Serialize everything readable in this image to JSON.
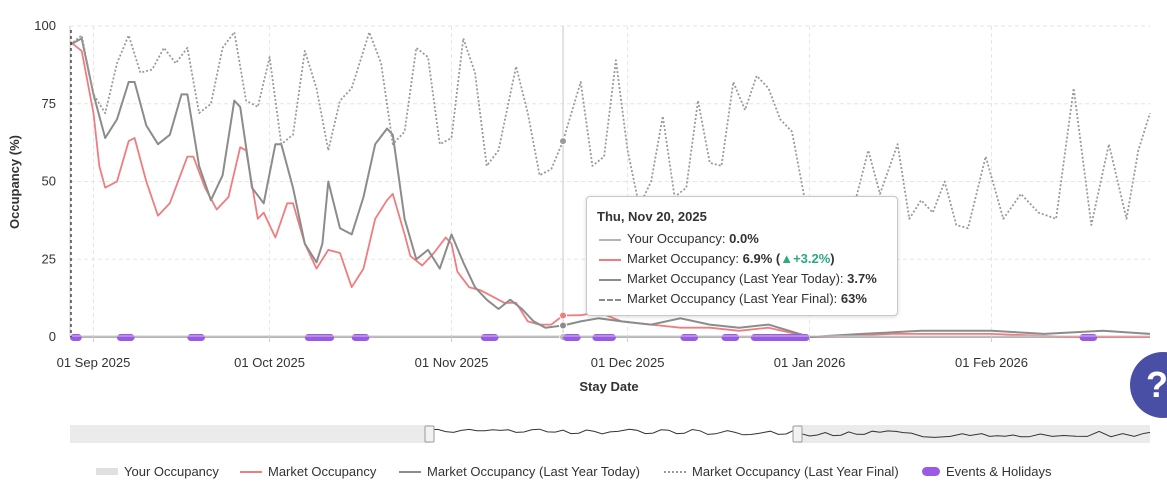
{
  "chart_data": {
    "type": "line",
    "xlabel": "Stay Date",
    "ylabel": "Occupancy (%)",
    "ylim": [
      0,
      100
    ],
    "y_ticks": [
      "0",
      "25",
      "50",
      "75",
      "100"
    ],
    "x_ticks": [
      "01 Sep 2025",
      "01 Oct 2025",
      "01 Nov 2025",
      "01 Dec 2025",
      "01 Jan 2026",
      "01 Feb 2026"
    ],
    "x_range": [
      "2025-08-28",
      "2026-02-28"
    ],
    "grid": true,
    "today_marker": "2025-08-28",
    "hover_date": "2025-11-20",
    "series": [
      {
        "name": "Your Occupancy",
        "color": "#b4b4b4",
        "points": [
          [
            "2025-08-28",
            0
          ],
          [
            "2026-02-28",
            0
          ]
        ]
      },
      {
        "name": "Market Occupancy",
        "color": "#ef7d80",
        "points": [
          [
            "2025-08-28",
            95
          ],
          [
            "2025-08-30",
            92
          ],
          [
            "2025-09-01",
            72
          ],
          [
            "2025-09-02",
            55
          ],
          [
            "2025-09-03",
            48
          ],
          [
            "2025-09-05",
            50
          ],
          [
            "2025-09-07",
            63
          ],
          [
            "2025-09-08",
            64
          ],
          [
            "2025-09-10",
            50
          ],
          [
            "2025-09-12",
            39
          ],
          [
            "2025-09-14",
            43
          ],
          [
            "2025-09-17",
            58
          ],
          [
            "2025-09-18",
            58
          ],
          [
            "2025-09-20",
            48
          ],
          [
            "2025-09-22",
            41
          ],
          [
            "2025-09-24",
            45
          ],
          [
            "2025-09-26",
            61
          ],
          [
            "2025-09-27",
            60
          ],
          [
            "2025-09-29",
            38
          ],
          [
            "2025-09-30",
            40
          ],
          [
            "2025-10-02",
            32
          ],
          [
            "2025-10-04",
            43
          ],
          [
            "2025-10-05",
            43
          ],
          [
            "2025-10-07",
            30
          ],
          [
            "2025-10-09",
            22
          ],
          [
            "2025-10-11",
            28
          ],
          [
            "2025-10-13",
            27
          ],
          [
            "2025-10-15",
            16
          ],
          [
            "2025-10-17",
            22
          ],
          [
            "2025-10-19",
            38
          ],
          [
            "2025-10-21",
            44
          ],
          [
            "2025-10-22",
            46
          ],
          [
            "2025-10-24",
            33
          ],
          [
            "2025-10-25",
            26
          ],
          [
            "2025-10-27",
            23
          ],
          [
            "2025-10-29",
            27
          ],
          [
            "2025-10-31",
            32
          ],
          [
            "2025-11-01",
            30
          ],
          [
            "2025-11-02",
            21
          ],
          [
            "2025-11-04",
            16
          ],
          [
            "2025-11-06",
            15
          ],
          [
            "2025-11-08",
            13
          ],
          [
            "2025-11-10",
            11
          ],
          [
            "2025-11-12",
            11
          ],
          [
            "2025-11-14",
            5
          ],
          [
            "2025-11-16",
            4
          ],
          [
            "2025-11-18",
            4
          ],
          [
            "2025-11-20",
            6.9
          ],
          [
            "2025-11-23",
            7
          ],
          [
            "2025-11-26",
            8
          ],
          [
            "2025-11-30",
            5
          ],
          [
            "2025-12-05",
            4
          ],
          [
            "2025-12-10",
            3
          ],
          [
            "2025-12-15",
            3
          ],
          [
            "2025-12-20",
            2
          ],
          [
            "2025-12-25",
            3
          ],
          [
            "2026-01-01",
            0
          ],
          [
            "2026-01-15",
            1
          ],
          [
            "2026-02-01",
            1
          ],
          [
            "2026-02-15",
            0
          ],
          [
            "2026-02-28",
            0
          ]
        ]
      },
      {
        "name": "Market Occupancy (Last Year Today)",
        "color": "#8c8c8c",
        "points": [
          [
            "2025-08-28",
            94
          ],
          [
            "2025-08-30",
            96
          ],
          [
            "2025-09-01",
            78
          ],
          [
            "2025-09-03",
            64
          ],
          [
            "2025-09-05",
            70
          ],
          [
            "2025-09-07",
            82
          ],
          [
            "2025-09-08",
            82
          ],
          [
            "2025-09-10",
            68
          ],
          [
            "2025-09-12",
            62
          ],
          [
            "2025-09-14",
            65
          ],
          [
            "2025-09-16",
            78
          ],
          [
            "2025-09-17",
            78
          ],
          [
            "2025-09-19",
            55
          ],
          [
            "2025-09-21",
            44
          ],
          [
            "2025-09-23",
            52
          ],
          [
            "2025-09-25",
            76
          ],
          [
            "2025-09-26",
            74
          ],
          [
            "2025-09-28",
            48
          ],
          [
            "2025-09-30",
            43
          ],
          [
            "2025-10-02",
            62
          ],
          [
            "2025-10-03",
            62
          ],
          [
            "2025-10-05",
            48
          ],
          [
            "2025-10-07",
            30
          ],
          [
            "2025-10-09",
            24
          ],
          [
            "2025-10-10",
            30
          ],
          [
            "2025-10-11",
            50
          ],
          [
            "2025-10-13",
            35
          ],
          [
            "2025-10-15",
            33
          ],
          [
            "2025-10-17",
            45
          ],
          [
            "2025-10-19",
            62
          ],
          [
            "2025-10-21",
            67
          ],
          [
            "2025-10-22",
            65
          ],
          [
            "2025-10-24",
            38
          ],
          [
            "2025-10-26",
            25
          ],
          [
            "2025-10-28",
            28
          ],
          [
            "2025-10-30",
            22
          ],
          [
            "2025-11-01",
            33
          ],
          [
            "2025-11-03",
            24
          ],
          [
            "2025-11-05",
            16
          ],
          [
            "2025-11-07",
            12
          ],
          [
            "2025-11-09",
            9
          ],
          [
            "2025-11-11",
            12
          ],
          [
            "2025-11-13",
            9
          ],
          [
            "2025-11-15",
            5
          ],
          [
            "2025-11-17",
            3
          ],
          [
            "2025-11-20",
            3.7
          ],
          [
            "2025-11-23",
            5
          ],
          [
            "2025-11-26",
            6
          ],
          [
            "2025-11-30",
            5
          ],
          [
            "2025-12-05",
            4
          ],
          [
            "2025-12-10",
            6
          ],
          [
            "2025-12-15",
            4
          ],
          [
            "2025-12-20",
            3
          ],
          [
            "2025-12-25",
            4
          ],
          [
            "2026-01-01",
            0
          ],
          [
            "2026-01-10",
            1
          ],
          [
            "2026-01-20",
            2
          ],
          [
            "2026-02-01",
            2
          ],
          [
            "2026-02-10",
            1
          ],
          [
            "2026-02-20",
            2
          ],
          [
            "2026-02-28",
            1
          ]
        ]
      },
      {
        "name": "Market Occupancy (Last Year Final)",
        "color": "#9a9a9a",
        "points": [
          [
            "2025-08-28",
            94
          ],
          [
            "2025-08-30",
            97
          ],
          [
            "2025-09-01",
            78
          ],
          [
            "2025-09-03",
            72
          ],
          [
            "2025-09-05",
            88
          ],
          [
            "2025-09-07",
            97
          ],
          [
            "2025-09-09",
            85
          ],
          [
            "2025-09-11",
            86
          ],
          [
            "2025-09-13",
            93
          ],
          [
            "2025-09-15",
            88
          ],
          [
            "2025-09-17",
            93
          ],
          [
            "2025-09-19",
            72
          ],
          [
            "2025-09-21",
            75
          ],
          [
            "2025-09-23",
            93
          ],
          [
            "2025-09-25",
            98
          ],
          [
            "2025-09-27",
            76
          ],
          [
            "2025-09-29",
            74
          ],
          [
            "2025-10-01",
            90
          ],
          [
            "2025-10-03",
            62
          ],
          [
            "2025-10-05",
            65
          ],
          [
            "2025-10-07",
            92
          ],
          [
            "2025-10-09",
            80
          ],
          [
            "2025-10-11",
            60
          ],
          [
            "2025-10-13",
            76
          ],
          [
            "2025-10-15",
            80
          ],
          [
            "2025-10-18",
            98
          ],
          [
            "2025-10-20",
            88
          ],
          [
            "2025-10-22",
            62
          ],
          [
            "2025-10-24",
            66
          ],
          [
            "2025-10-26",
            93
          ],
          [
            "2025-10-28",
            90
          ],
          [
            "2025-10-30",
            62
          ],
          [
            "2025-11-01",
            64
          ],
          [
            "2025-11-03",
            96
          ],
          [
            "2025-11-05",
            85
          ],
          [
            "2025-11-07",
            55
          ],
          [
            "2025-11-09",
            60
          ],
          [
            "2025-11-12",
            87
          ],
          [
            "2025-11-14",
            72
          ],
          [
            "2025-11-16",
            52
          ],
          [
            "2025-11-18",
            54
          ],
          [
            "2025-11-20",
            63
          ],
          [
            "2025-11-23",
            82
          ],
          [
            "2025-11-25",
            55
          ],
          [
            "2025-11-27",
            58
          ],
          [
            "2025-11-29",
            89
          ],
          [
            "2025-12-01",
            60
          ],
          [
            "2025-12-03",
            42
          ],
          [
            "2025-12-05",
            50
          ],
          [
            "2025-12-07",
            71
          ],
          [
            "2025-12-09",
            45
          ],
          [
            "2025-12-11",
            48
          ],
          [
            "2025-12-13",
            76
          ],
          [
            "2025-12-15",
            56
          ],
          [
            "2025-12-17",
            55
          ],
          [
            "2025-12-19",
            82
          ],
          [
            "2025-12-21",
            73
          ],
          [
            "2025-12-23",
            84
          ],
          [
            "2025-12-25",
            80
          ],
          [
            "2025-12-27",
            70
          ],
          [
            "2025-12-29",
            66
          ],
          [
            "2026-01-01",
            36
          ],
          [
            "2026-01-04",
            30
          ],
          [
            "2026-01-08",
            38
          ],
          [
            "2026-01-11",
            60
          ],
          [
            "2026-01-13",
            46
          ],
          [
            "2026-01-16",
            62
          ],
          [
            "2026-01-18",
            38
          ],
          [
            "2026-01-20",
            44
          ],
          [
            "2026-01-22",
            40
          ],
          [
            "2026-01-24",
            50
          ],
          [
            "2026-01-26",
            36
          ],
          [
            "2026-01-28",
            35
          ],
          [
            "2026-01-31",
            58
          ],
          [
            "2026-02-03",
            38
          ],
          [
            "2026-02-06",
            46
          ],
          [
            "2026-02-09",
            40
          ],
          [
            "2026-02-12",
            38
          ],
          [
            "2026-02-15",
            80
          ],
          [
            "2026-02-18",
            36
          ],
          [
            "2026-02-21",
            62
          ],
          [
            "2026-02-24",
            38
          ],
          [
            "2026-02-26",
            60
          ],
          [
            "2026-02-28",
            72
          ]
        ]
      }
    ],
    "events": [
      [
        "2025-08-28",
        "2025-08-30"
      ],
      [
        "2025-09-05",
        "2025-09-08"
      ],
      [
        "2025-09-17",
        "2025-09-20"
      ],
      [
        "2025-10-07",
        "2025-10-12"
      ],
      [
        "2025-10-15",
        "2025-10-18"
      ],
      [
        "2025-11-06",
        "2025-11-09"
      ],
      [
        "2025-11-20",
        "2025-11-23"
      ],
      [
        "2025-11-25",
        "2025-11-29"
      ],
      [
        "2025-12-10",
        "2025-12-13"
      ],
      [
        "2025-12-17",
        "2025-12-20"
      ],
      [
        "2025-12-22",
        "2026-01-01"
      ],
      [
        "2026-02-16",
        "2026-02-19"
      ]
    ],
    "event_color": "#9b59e8"
  },
  "tooltip": {
    "date": "Thu, Nov 20, 2025",
    "rows": [
      {
        "label": "Your Occupancy:",
        "value": "0.0%"
      },
      {
        "label": "Market Occupancy:",
        "value": "6.9% (",
        "change": "▲+3.2%",
        "suffix": ")"
      },
      {
        "label": "Market Occupancy (Last Year Today):",
        "value": "3.7%"
      },
      {
        "label": "Market Occupancy (Last Year Final):",
        "value": "63%"
      }
    ]
  },
  "legend": {
    "items": [
      {
        "label": "Your Occupancy"
      },
      {
        "label": "Market Occupancy"
      },
      {
        "label": "Market Occupancy (Last Year Today)"
      },
      {
        "label": "Market Occupancy (Last Year Final)"
      },
      {
        "label": "Events & Holidays"
      }
    ]
  },
  "help": {
    "glyph": "?"
  }
}
